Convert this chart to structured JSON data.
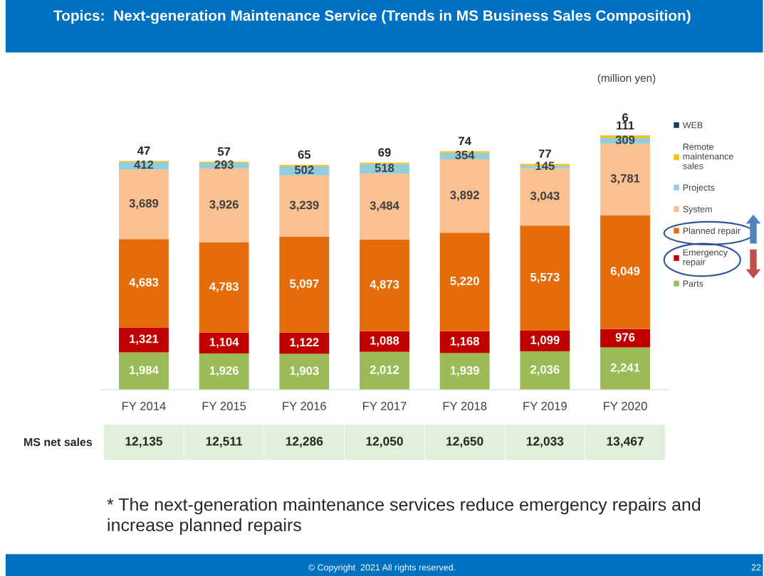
{
  "chart_data": {
    "type": "bar",
    "stacked": true,
    "title": "Topics:  Next-generation Maintenance Service (Trends in MS Business Sales Composition)",
    "categories": [
      "FY 2014",
      "FY 2015",
      "FY 2016",
      "FY 2017",
      "FY 2018",
      "FY 2019",
      "FY 2020"
    ],
    "series": [
      {
        "name": "Parts",
        "color": "#9bbb59",
        "values": [
          1984,
          1926,
          1903,
          2012,
          1939,
          2036,
          2241
        ],
        "value_labels": [
          "1,984",
          "1,926",
          "1,903",
          "2,012",
          "1,939",
          "2,036",
          "2,241"
        ]
      },
      {
        "name": "Emergency repair",
        "color": "#c00000",
        "values": [
          1321,
          1104,
          1122,
          1088,
          1168,
          1099,
          976
        ],
        "value_labels": [
          "1,321",
          "1,104",
          "1,122",
          "1,088",
          "1,168",
          "1,099",
          "976"
        ]
      },
      {
        "name": "Planned repair",
        "color": "#e46c0a",
        "values": [
          4683,
          4783,
          5097,
          4873,
          5220,
          5573,
          6049
        ],
        "value_labels": [
          "4,683",
          "4,783",
          "5,097",
          "4,873",
          "5,220",
          "5,573",
          "6,049"
        ]
      },
      {
        "name": "System",
        "color": "#fac090",
        "values": [
          3689,
          3926,
          3239,
          3484,
          3892,
          3043,
          3781
        ],
        "value_labels": [
          "3,689",
          "3,926",
          "3,239",
          "3,484",
          "3,892",
          "3,043",
          "3,781"
        ]
      },
      {
        "name": "Projects",
        "color": "#92cddc",
        "values": [
          412,
          293,
          502,
          518,
          354,
          145,
          309
        ],
        "value_labels": [
          "412",
          "293",
          "502",
          "518",
          "354",
          "145",
          "309"
        ]
      },
      {
        "name": "Remote maintenance sales",
        "color": "#ffc000",
        "values": [
          47,
          57,
          65,
          69,
          74,
          77,
          111
        ],
        "value_labels": [
          "47",
          "57",
          "65",
          "69",
          "74",
          "77",
          "111"
        ]
      },
      {
        "name": "WEB",
        "color": "#1f3864",
        "values": [
          null,
          null,
          null,
          null,
          null,
          null,
          6
        ],
        "value_labels": [
          null,
          null,
          null,
          null,
          null,
          null,
          "6"
        ]
      }
    ],
    "legend": "right",
    "annotations": [
      "(million yen)",
      "MS net sales",
      "12,135",
      "12,511",
      "12,286",
      "12,050",
      "12,650",
      "12,033",
      "13,467",
      "* The next-generation maintenance services reduce emergency repairs and increase planned repairs",
      "© Copyright  2021 All rights reserved.",
      "22"
    ]
  }
}
